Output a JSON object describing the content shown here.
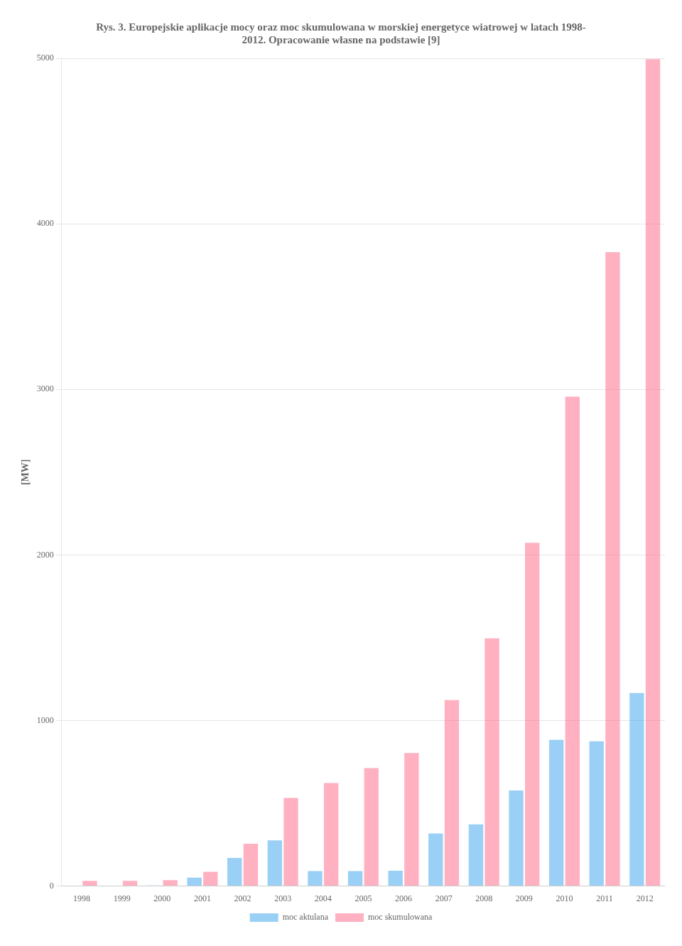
{
  "chart_data": {
    "type": "bar",
    "title": "Rys. 3. Europejskie aplikacje mocy oraz moc skumulowana w morskiej energetyce wiatrowej w latach 1998-\n2012. Opracowanie własne na podstawie [9]",
    "y_label": "[MW]",
    "categories": [
      "1998",
      "1999",
      "2000",
      "2001",
      "2002",
      "2003",
      "2004",
      "2005",
      "2006",
      "2007",
      "2008",
      "2009",
      "2010",
      "2011",
      "2012"
    ],
    "series": [
      {
        "name": "moc aktulana",
        "values": [
          3,
          0,
          4,
          51,
          170,
          276,
          90,
          90,
          93,
          318,
          373,
          577,
          883,
          874,
          1166
        ]
      },
      {
        "name": "moc skumulowana",
        "values": [
          32,
          32,
          36,
          86,
          256,
          532,
          622,
          712,
          804,
          1123,
          1496,
          2073,
          2956,
          3829,
          4995
        ]
      }
    ],
    "ylim": [
      0,
      5000
    ],
    "yticks": [
      0,
      1000,
      2000,
      3000,
      4000,
      5000
    ],
    "grid": true,
    "legend": "bottom"
  }
}
